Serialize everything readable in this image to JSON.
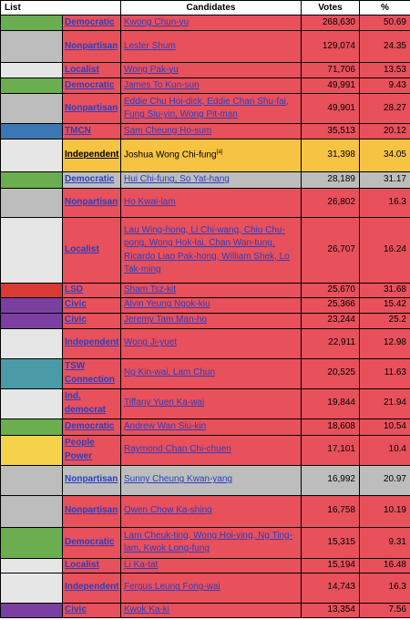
{
  "header": {
    "list": "List",
    "candidates": "Candidates",
    "votes": "Votes",
    "percent": "%"
  },
  "rows": [
    {
      "color": "#6aae4f",
      "list": "Democratic",
      "candidates": "Kwong Chun-yu",
      "votes": "268,630",
      "pct": "50.69",
      "style": "red",
      "h": 17
    },
    {
      "color": "#bdbdbd",
      "list": "Nonpartisan",
      "candidates": "Lester Shum",
      "votes": "129,074",
      "pct": "24.35",
      "style": "red",
      "h": 35
    },
    {
      "color": "#e6e6e6",
      "list": "Localist",
      "candidates": "Wong Pak-yu",
      "votes": "71,706",
      "pct": "13.53",
      "style": "red",
      "h": 17
    },
    {
      "color": "#6aae4f",
      "list": "Democratic",
      "candidates": "James To Kun-sun",
      "votes": "49,991",
      "pct": "9.43",
      "style": "red",
      "h": 17
    },
    {
      "color": "#bdbdbd",
      "list": "Nonpartisan",
      "candidates": "Eddie Chu Hoi-dick, Eddie Chan Shu-fai, Fung Siu-yin, Wong Pit-man",
      "votes": "49,901",
      "pct": "28.27",
      "style": "red",
      "h": 33
    },
    {
      "color": "#3b77b5",
      "list": "TMCN",
      "candidates": "Sam Cheung Ho-sum",
      "votes": "35,513",
      "pct": "20.12",
      "style": "red",
      "h": 17
    },
    {
      "color": "#e6e6e6",
      "list": "Independent",
      "candidates": "Joshua Wong Chi-fung",
      "note": "[a]",
      "votes": "31,398",
      "pct": "34.05",
      "style": "yellow",
      "h": 36
    },
    {
      "color": "#6aae4f",
      "list": "Democratic",
      "candidates": "Hui Chi-fung, So Yat-hang",
      "votes": "28,189",
      "pct": "31.17",
      "style": "gray",
      "h": 18
    },
    {
      "color": "#bdbdbd",
      "list": "Nonpartisan",
      "candidates": "Ho Kwai-lam",
      "votes": "26,802",
      "pct": "16.3",
      "style": "red",
      "h": 32
    },
    {
      "color": "#e6e6e6",
      "list": "Localist",
      "candidates": "Lau Wing-hong, Li Chi-wang, Chiu Chu-pong, Wong Hok-lai, Chan Wan-tung, Ricardo Liao Pak-hong, William Shek, Lo Tak-ming",
      "votes": "26,707",
      "pct": "16.24",
      "style": "red",
      "h": 72
    },
    {
      "color": "#d93a35",
      "list": "LSD",
      "candidates": "Sham Tsz-kit",
      "votes": "25,670",
      "pct": "31.68",
      "style": "red",
      "h": 15
    },
    {
      "color": "#7a3fa0",
      "list": "Civic",
      "candidates": "Alvin Yeung Ngok-kiu",
      "votes": "25,366",
      "pct": "15.42",
      "style": "red",
      "h": 17
    },
    {
      "color": "#7a3fa0",
      "list": "Civic",
      "candidates": "Jeremy Tam Man-ho",
      "votes": "23,244",
      "pct": "25.2",
      "style": "red",
      "h": 17
    },
    {
      "color": "#e6e6e6",
      "list": "Independent",
      "candidates": "Wong Ji-yuet",
      "votes": "22,911",
      "pct": "12.98",
      "style": "red",
      "h": 33
    },
    {
      "color": "#4a9aa8",
      "list": "TSW Connection",
      "candidates": "Ng Kin-wai, Lam Chun",
      "votes": "20,525",
      "pct": "11.63",
      "style": "red",
      "h": 33
    },
    {
      "color": "#e6e6e6",
      "list": "Ind. democrat",
      "candidates": "Tiffany Yuen Ka-wai",
      "votes": "19,844",
      "pct": "21.94",
      "style": "red",
      "h": 33
    },
    {
      "color": "#6aae4f",
      "list": "Democratic",
      "candidates": "Andrew Wan Siu-kin",
      "votes": "18,608",
      "pct": "10.54",
      "style": "red",
      "h": 18
    },
    {
      "color": "#f5d24a",
      "list": "People Power",
      "candidates": "Raymond Chan Chi-chuen",
      "votes": "17,101",
      "pct": "10.4",
      "style": "red",
      "h": 33
    },
    {
      "color": "#bdbdbd",
      "list": "Nonpartisan",
      "candidates": "Sunny Cheung Kwan-yang",
      "votes": "16,992",
      "pct": "20.97",
      "style": "gray",
      "h": 33
    },
    {
      "color": "#bdbdbd",
      "list": "Nonpartisan",
      "candidates": "Owen Chow Ka-shing",
      "votes": "16,758",
      "pct": "10.19",
      "style": "red",
      "h": 35
    },
    {
      "color": "#6aae4f",
      "list": "Democratic",
      "candidates": "Lam Cheuk-ting, Wong Hoi-ying, Ng Ting-lam, Kwok Long-fung",
      "votes": "15,315",
      "pct": "9.31",
      "style": "red",
      "h": 34
    },
    {
      "color": "#e6e6e6",
      "list": "Localist",
      "candidates": "Li Ka-tat",
      "votes": "15,194",
      "pct": "16.48",
      "style": "red",
      "h": 16
    },
    {
      "color": "#e6e6e6",
      "list": "Independent",
      "candidates": "Fergus Leung Fong-wai",
      "votes": "14,743",
      "pct": "16.3",
      "style": "red",
      "h": 33
    },
    {
      "color": "#7a3fa0",
      "list": "Civic",
      "candidates": "Kwok Ka-ki",
      "votes": "13,354",
      "pct": "7.56",
      "style": "red",
      "h": 16
    }
  ]
}
